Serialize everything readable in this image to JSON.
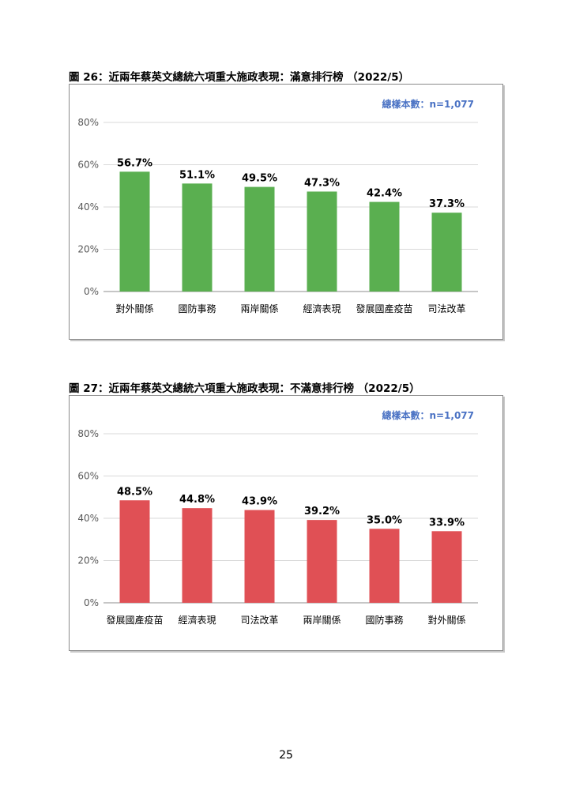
{
  "charts": [
    {
      "caption": "圖 26：近兩年蔡英文總統六項重大施政表現：滿意排行榜 （2022/5）",
      "sample_note": "總樣本數：n=1,077"
    },
    {
      "caption": "圖 27：近兩年蔡英文總統六項重大施政表現：不滿意排行榜 （2022/5）",
      "sample_note": "總樣本數：n=1,077"
    }
  ],
  "page_number": "25",
  "chart_data": [
    {
      "type": "bar",
      "title": "圖 26：近兩年蔡英文總統六項重大施政表現：滿意排行榜 （2022/5）",
      "categories": [
        "對外關係",
        "國防事務",
        "兩岸關係",
        "經濟表現",
        "發展國產疫苗",
        "司法改革"
      ],
      "values": [
        56.7,
        51.1,
        49.5,
        47.3,
        42.4,
        37.3
      ],
      "value_labels": [
        "56.7%",
        "51.1%",
        "49.5%",
        "47.3%",
        "42.4%",
        "37.3%"
      ],
      "y_ticks": [
        0,
        20,
        40,
        60,
        80
      ],
      "y_tick_labels": [
        "0%",
        "20%",
        "40%",
        "60%",
        "80%"
      ],
      "ylim": [
        0,
        80
      ],
      "color": "#5aaf50",
      "grid": true,
      "legend": "none"
    },
    {
      "type": "bar",
      "title": "圖 27：近兩年蔡英文總統六項重大施政表現：不滿意排行榜 （2022/5）",
      "categories": [
        "發展國產疫苗",
        "經濟表現",
        "司法改革",
        "兩岸關係",
        "國防事務",
        "對外關係"
      ],
      "values": [
        48.5,
        44.8,
        43.9,
        39.2,
        35.0,
        33.9
      ],
      "value_labels": [
        "48.5%",
        "44.8%",
        "43.9%",
        "39.2%",
        "35.0%",
        "33.9%"
      ],
      "y_ticks": [
        0,
        20,
        40,
        60,
        80
      ],
      "y_tick_labels": [
        "0%",
        "20%",
        "40%",
        "60%",
        "80%"
      ],
      "ylim": [
        0,
        80
      ],
      "color": "#e05055",
      "grid": true,
      "legend": "none"
    }
  ]
}
